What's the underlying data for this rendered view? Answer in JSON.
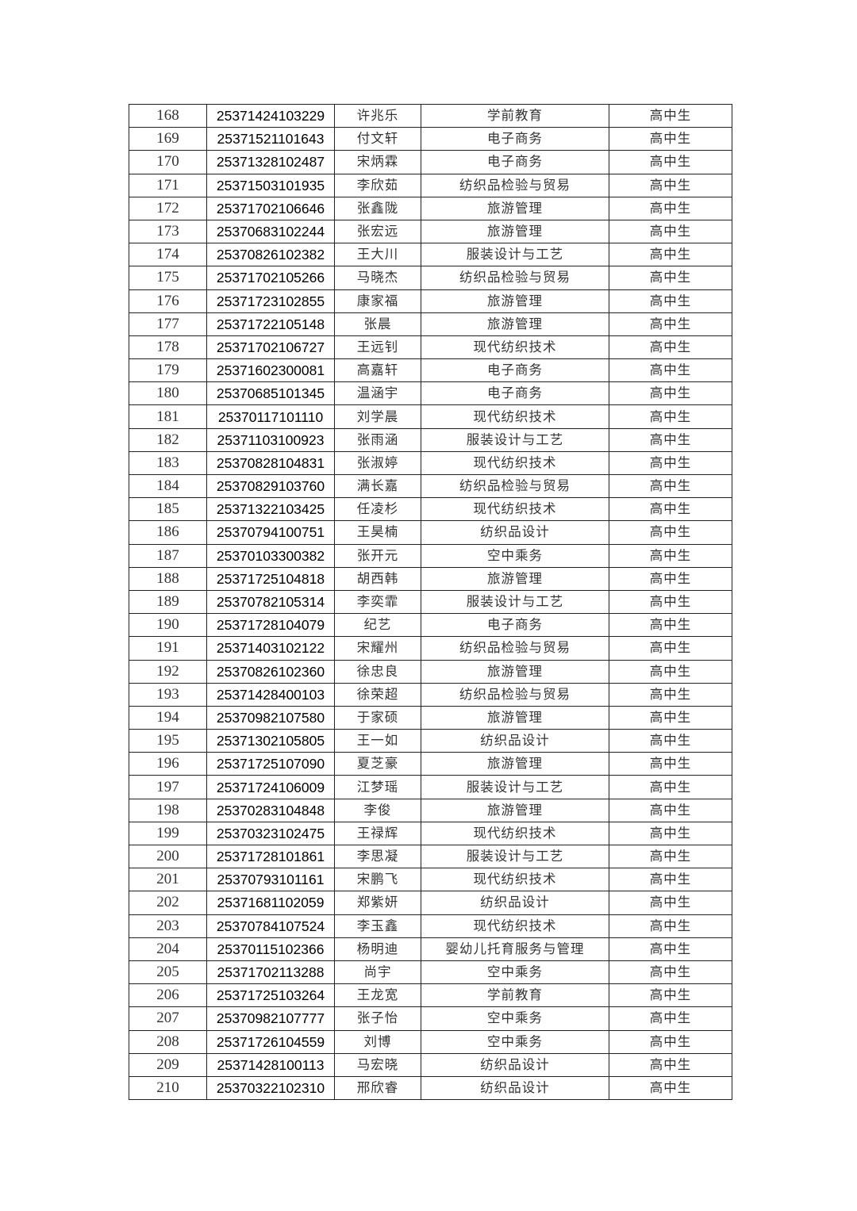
{
  "table": {
    "rows": [
      [
        "168",
        "25371424103229",
        "许兆乐",
        "学前教育",
        "高中生"
      ],
      [
        "169",
        "25371521101643",
        "付文轩",
        "电子商务",
        "高中生"
      ],
      [
        "170",
        "25371328102487",
        "宋炳霖",
        "电子商务",
        "高中生"
      ],
      [
        "171",
        "25371503101935",
        "李欣茹",
        "纺织品检验与贸易",
        "高中生"
      ],
      [
        "172",
        "25371702106646",
        "张鑫陇",
        "旅游管理",
        "高中生"
      ],
      [
        "173",
        "25370683102244",
        "张宏远",
        "旅游管理",
        "高中生"
      ],
      [
        "174",
        "25370826102382",
        "王大川",
        "服装设计与工艺",
        "高中生"
      ],
      [
        "175",
        "25371702105266",
        "马晓杰",
        "纺织品检验与贸易",
        "高中生"
      ],
      [
        "176",
        "25371723102855",
        "康家福",
        "旅游管理",
        "高中生"
      ],
      [
        "177",
        "25371722105148",
        "张晨",
        "旅游管理",
        "高中生"
      ],
      [
        "178",
        "25371702106727",
        "王远钊",
        "现代纺织技术",
        "高中生"
      ],
      [
        "179",
        "25371602300081",
        "高嘉轩",
        "电子商务",
        "高中生"
      ],
      [
        "180",
        "25370685101345",
        "温涵宇",
        "电子商务",
        "高中生"
      ],
      [
        "181",
        "25370117101110",
        "刘学晨",
        "现代纺织技术",
        "高中生"
      ],
      [
        "182",
        "25371103100923",
        "张雨涵",
        "服装设计与工艺",
        "高中生"
      ],
      [
        "183",
        "25370828104831",
        "张淑婷",
        "现代纺织技术",
        "高中生"
      ],
      [
        "184",
        "25370829103760",
        "满长嘉",
        "纺织品检验与贸易",
        "高中生"
      ],
      [
        "185",
        "25371322103425",
        "任凌杉",
        "现代纺织技术",
        "高中生"
      ],
      [
        "186",
        "25370794100751",
        "王昊楠",
        "纺织品设计",
        "高中生"
      ],
      [
        "187",
        "25370103300382",
        "张开元",
        "空中乘务",
        "高中生"
      ],
      [
        "188",
        "25371725104818",
        "胡西韩",
        "旅游管理",
        "高中生"
      ],
      [
        "189",
        "25370782105314",
        "李奕霏",
        "服装设计与工艺",
        "高中生"
      ],
      [
        "190",
        "25371728104079",
        "纪艺",
        "电子商务",
        "高中生"
      ],
      [
        "191",
        "25371403102122",
        "宋耀州",
        "纺织品检验与贸易",
        "高中生"
      ],
      [
        "192",
        "25370826102360",
        "徐忠良",
        "旅游管理",
        "高中生"
      ],
      [
        "193",
        "25371428400103",
        "徐荣超",
        "纺织品检验与贸易",
        "高中生"
      ],
      [
        "194",
        "25370982107580",
        "于家硕",
        "旅游管理",
        "高中生"
      ],
      [
        "195",
        "25371302105805",
        "王一如",
        "纺织品设计",
        "高中生"
      ],
      [
        "196",
        "25371725107090",
        "夏芝豪",
        "旅游管理",
        "高中生"
      ],
      [
        "197",
        "25371724106009",
        "江梦瑶",
        "服装设计与工艺",
        "高中生"
      ],
      [
        "198",
        "25370283104848",
        "李俊",
        "旅游管理",
        "高中生"
      ],
      [
        "199",
        "25370323102475",
        "王禄辉",
        "现代纺织技术",
        "高中生"
      ],
      [
        "200",
        "25371728101861",
        "李思凝",
        "服装设计与工艺",
        "高中生"
      ],
      [
        "201",
        "25370793101161",
        "宋鹏飞",
        "现代纺织技术",
        "高中生"
      ],
      [
        "202",
        "25371681102059",
        "郑紫妍",
        "纺织品设计",
        "高中生"
      ],
      [
        "203",
        "25370784107524",
        "李玉鑫",
        "现代纺织技术",
        "高中生"
      ],
      [
        "204",
        "25370115102366",
        "杨明迪",
        "婴幼儿托育服务与管理",
        "高中生"
      ],
      [
        "205",
        "25371702113288",
        "尚宇",
        "空中乘务",
        "高中生"
      ],
      [
        "206",
        "25371725103264",
        "王龙宽",
        "学前教育",
        "高中生"
      ],
      [
        "207",
        "25370982107777",
        "张子怡",
        "空中乘务",
        "高中生"
      ],
      [
        "208",
        "25371726104559",
        "刘博",
        "空中乘务",
        "高中生"
      ],
      [
        "209",
        "25371428100113",
        "马宏晓",
        "纺织品设计",
        "高中生"
      ],
      [
        "210",
        "25370322102310",
        "邢欣睿",
        "纺织品设计",
        "高中生"
      ]
    ]
  }
}
